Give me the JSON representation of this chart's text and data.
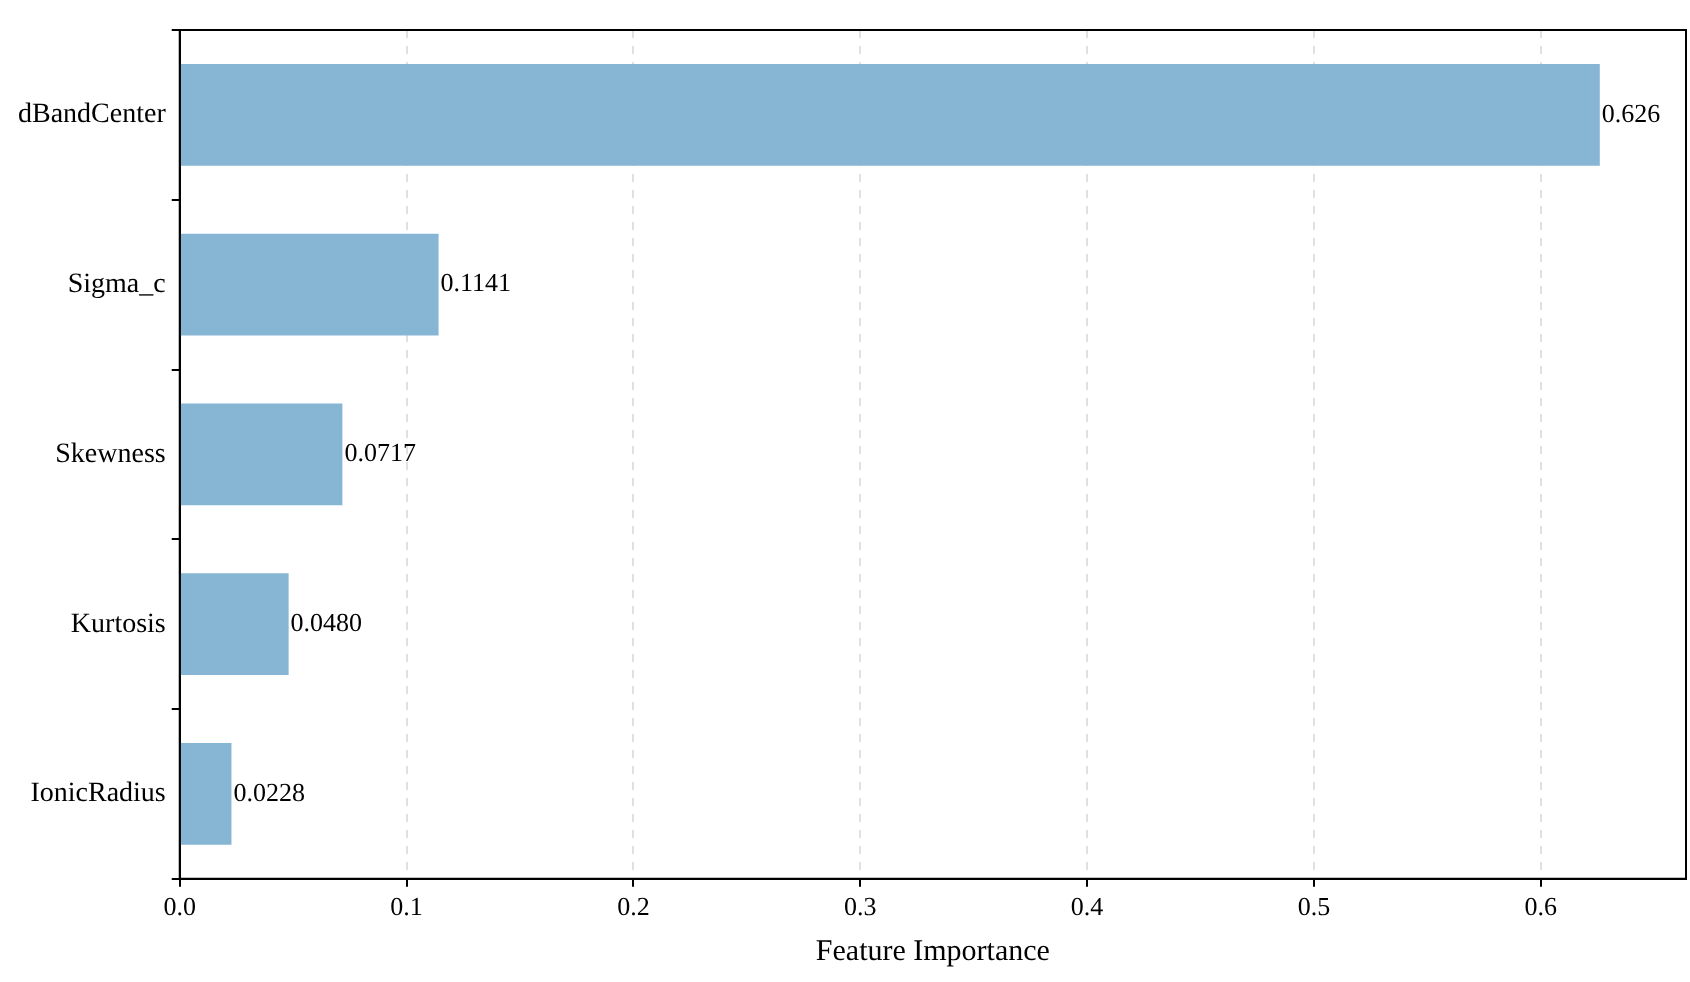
{
  "chart_data": {
    "type": "bar",
    "orientation": "horizontal",
    "xlabel": "Feature Importance",
    "categories": [
      "dBandCenter",
      "Sigma_c",
      "Skewness",
      "Kurtosis",
      "IonicRadius"
    ],
    "values": [
      0.626,
      0.1141,
      0.0717,
      0.048,
      0.0228
    ],
    "value_labels": [
      "0.626",
      "0.1141",
      "0.0717",
      "0.0480",
      "0.0228"
    ],
    "color": "#86b6d4",
    "xlim": [
      0,
      0.664
    ],
    "xticks": [
      {
        "value": 0,
        "label": "0.0"
      },
      {
        "value": 0.1,
        "label": "0.1"
      },
      {
        "value": 0.2,
        "label": "0.2"
      },
      {
        "value": 0.3,
        "label": "0.3"
      },
      {
        "value": 0.4,
        "label": "0.4"
      },
      {
        "value": 0.5,
        "label": "0.5"
      },
      {
        "value": 0.6,
        "label": "0.6"
      }
    ],
    "grid": "x",
    "legend": false
  }
}
